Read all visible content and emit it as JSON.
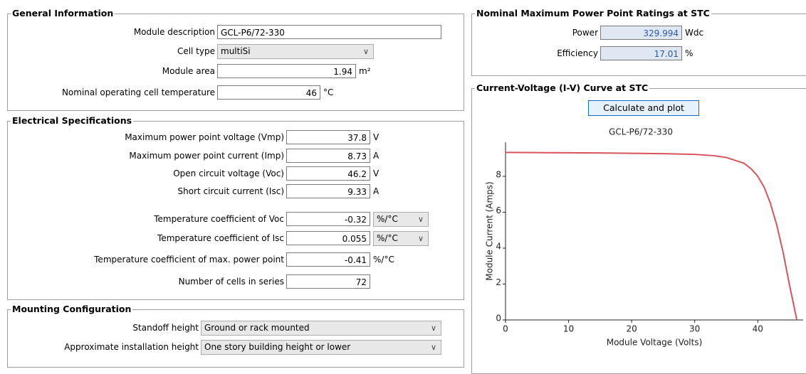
{
  "general": {
    "title": "General Information",
    "fields": [
      {
        "label": "Module description",
        "value": "GCL-P6/72-330"
      },
      {
        "label": "Cell type",
        "value": "multiSi"
      },
      {
        "label": "Module area",
        "value": 1.94,
        "unit": "m²"
      },
      {
        "label": "Nominal operating cell temperature",
        "value": 46,
        "unit": "°C"
      }
    ]
  },
  "electrical": {
    "title": "Electrical Specifications",
    "fields": [
      {
        "label": "Maximum power point voltage (Vmp)",
        "value": 37.8,
        "unit": "V"
      },
      {
        "label": "Maximum power point current (Imp)",
        "value": 8.73,
        "unit": "A"
      },
      {
        "label": "Open circuit voltage (Voc)",
        "value": 46.2,
        "unit": "V"
      },
      {
        "label": "Short circuit current (Isc)",
        "value": 9.33,
        "unit": "A"
      },
      {
        "label": "Temperature coefficient of Voc",
        "value": -0.32,
        "unit": "%/°C"
      },
      {
        "label": "Temperature coefficient of Isc",
        "value": 0.055,
        "unit": "%/°C"
      },
      {
        "label": "Temperature coefficient of max. power point",
        "value": -0.41,
        "unit": "%/°C"
      },
      {
        "label": "Number of cells in series",
        "value": 72
      }
    ]
  },
  "mounting": {
    "title": "Mounting Configuration",
    "fields": [
      {
        "label": "Standoff height",
        "value": "Ground or rack mounted"
      },
      {
        "label": "Approximate installation height",
        "value": "One story building height or lower"
      }
    ]
  },
  "ratings": {
    "title": "Nominal Maximum Power Point Ratings at STC",
    "fields": [
      {
        "label": "Power",
        "value": 329.994,
        "unit": "Wdc"
      },
      {
        "label": "Efficiency",
        "value": 17.01,
        "unit": "%"
      }
    ]
  },
  "iv": {
    "title": "Current-Voltage (I-V) Curve at STC",
    "button": "Calculate and plot"
  },
  "chart_data": {
    "type": "line",
    "title": "GCL-P6/72-330",
    "x_label": "Module Voltage (Volts)",
    "y_label": "Module Current (Amps)",
    "x": [
      0,
      5,
      10,
      15,
      20,
      25,
      30,
      33,
      35,
      37.8,
      39,
      40,
      41,
      42,
      43,
      44,
      45,
      46.2
    ],
    "series": [
      {
        "color": "#d9545a",
        "values": [
          9.33,
          9.32,
          9.31,
          9.3,
          9.28,
          9.26,
          9.22,
          9.15,
          9.05,
          8.73,
          8.4,
          8.0,
          7.4,
          6.5,
          5.3,
          3.8,
          2.0,
          0
        ]
      }
    ],
    "xlim": [
      0,
      47.2
    ],
    "ylim": [
      0,
      9.9
    ],
    "xticks": [
      0,
      10,
      20,
      30,
      40
    ],
    "yticks": [
      0,
      2,
      4,
      6,
      8
    ]
  }
}
